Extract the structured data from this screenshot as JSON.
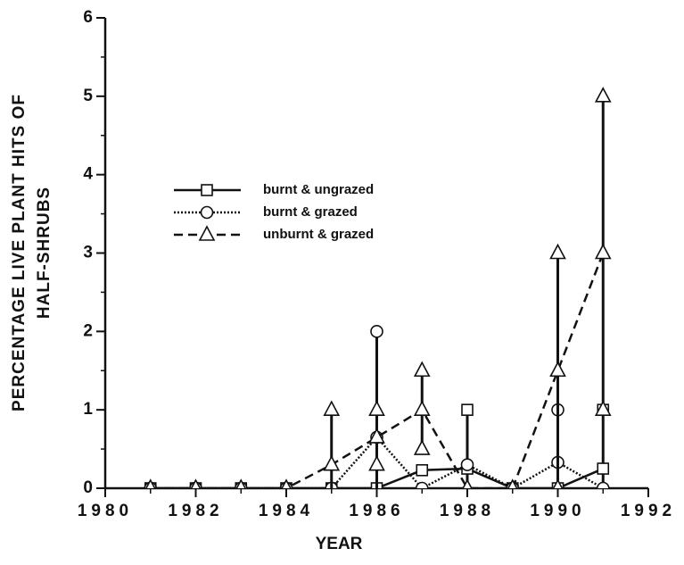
{
  "chart_data": {
    "type": "line",
    "xlabel": "YEAR",
    "ylabel": [
      "PERCENTAGE LIVE PLANT HITS OF",
      "HALF-SHRUBS"
    ],
    "x": [
      1981,
      1982,
      1983,
      1984,
      1985,
      1986,
      1987,
      1988,
      1989,
      1990,
      1991
    ],
    "series": [
      {
        "name": "burnt & ungrazed",
        "color": "#111111",
        "dash": "solid",
        "marker": "square",
        "values": [
          0,
          0,
          0,
          0,
          0,
          0,
          0.23,
          0.25,
          0,
          0,
          0.25
        ],
        "errors": [
          null,
          null,
          null,
          null,
          null,
          null,
          null,
          0.75,
          null,
          null,
          0.75
        ]
      },
      {
        "name": "burnt & grazed",
        "color": "#111111",
        "dash": "dotted",
        "marker": "circle",
        "values": [
          0,
          0,
          0,
          0,
          0,
          0.65,
          0,
          0.3,
          0,
          0.33,
          0
        ],
        "errors": [
          null,
          null,
          null,
          null,
          null,
          1.35,
          null,
          null,
          null,
          0.67,
          null
        ]
      },
      {
        "name": "unburnt & grazed",
        "color": "#111111",
        "dash": "dashed",
        "marker": "triangle",
        "values": [
          0,
          0,
          0,
          0,
          0.3,
          0.65,
          1.0,
          0,
          0,
          1.5,
          3.0
        ],
        "errors": [
          null,
          null,
          null,
          null,
          0.7,
          0.35,
          0.5,
          null,
          null,
          1.5,
          2.0
        ]
      }
    ],
    "xlim": [
      1980,
      1992
    ],
    "xticks": [
      1980,
      1982,
      1984,
      1986,
      1988,
      1990,
      1992
    ],
    "ylim": [
      0,
      6
    ],
    "yticks": [
      0,
      1,
      2,
      3,
      4,
      5,
      6
    ],
    "grid": false,
    "legend": "center-left"
  }
}
